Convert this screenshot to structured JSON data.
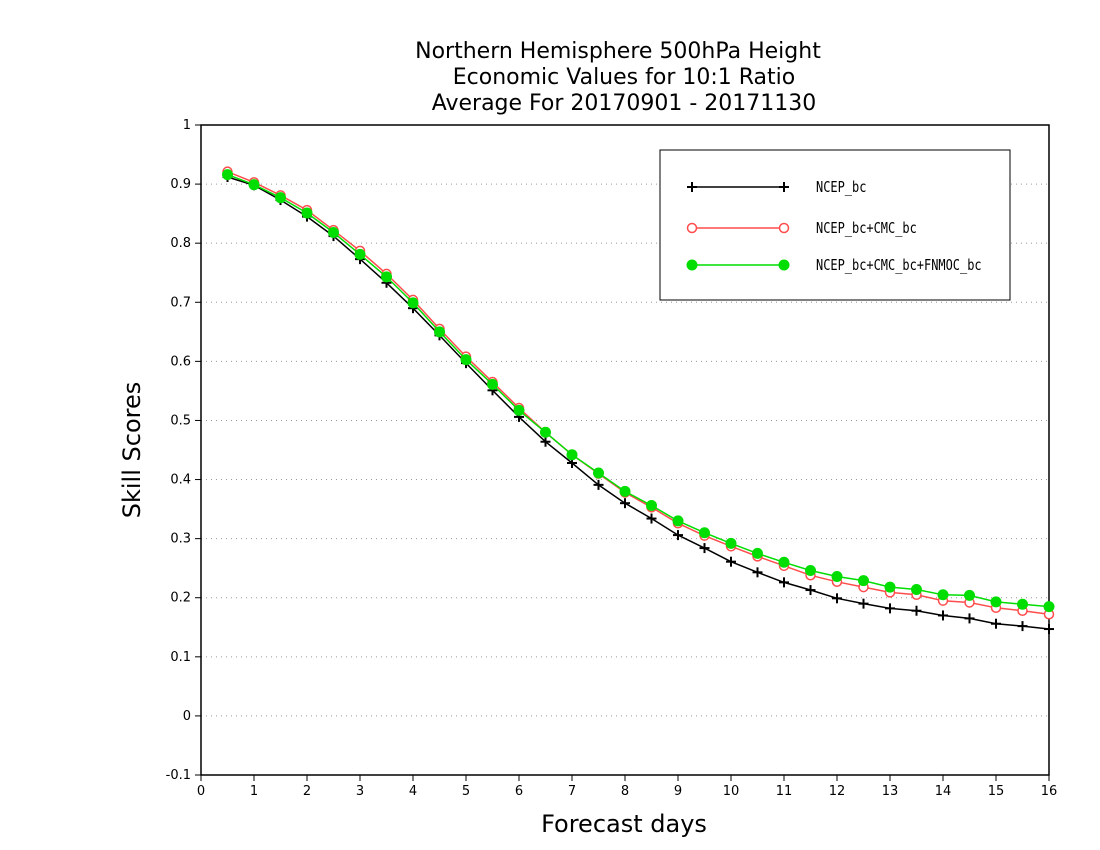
{
  "chart_data": {
    "type": "line",
    "title": [
      "Northern Hemisphere 500hPa Height",
      "Economic Values for 10:1 Ratio",
      "Average For 20170901 - 20171130"
    ],
    "xlabel": "Forecast days",
    "ylabel": "Skill Scores",
    "xlim": [
      0,
      16
    ],
    "ylim": [
      -0.1,
      1
    ],
    "xticks": [
      "0",
      "1",
      "2",
      "3",
      "4",
      "5",
      "6",
      "7",
      "8",
      "9",
      "10",
      "11",
      "12",
      "13",
      "14",
      "15",
      "16"
    ],
    "yticks": [
      "-0.1",
      "0",
      "0.1",
      "0.2",
      "0.3",
      "0.4",
      "0.5",
      "0.6",
      "0.7",
      "0.8",
      "0.9",
      "1"
    ],
    "grid": "horizontal-dotted",
    "legend_position": "top-right",
    "x": [
      0.5,
      1,
      1.5,
      2,
      2.5,
      3,
      3.5,
      4,
      4.5,
      5,
      5.5,
      6,
      6.5,
      7,
      7.5,
      8,
      8.5,
      9,
      9.5,
      10,
      10.5,
      11,
      11.5,
      12,
      12.5,
      13,
      13.5,
      14,
      14.5,
      15,
      15.5,
      16
    ],
    "series": [
      {
        "name": "NCEP_bc",
        "color": "#000000",
        "marker": "plus",
        "values": [
          0.912,
          0.898,
          0.873,
          0.845,
          0.812,
          0.773,
          0.733,
          0.69,
          0.644,
          0.597,
          0.551,
          0.506,
          0.464,
          0.428,
          0.391,
          0.36,
          0.334,
          0.306,
          0.284,
          0.261,
          0.243,
          0.226,
          0.213,
          0.199,
          0.19,
          0.182,
          0.178,
          0.17,
          0.165,
          0.156,
          0.152,
          0.147
        ]
      },
      {
        "name": "NCEP_bc+CMC_bc",
        "color": "#ff4d4d",
        "marker": "open-circle",
        "values": [
          0.921,
          0.903,
          0.881,
          0.856,
          0.822,
          0.787,
          0.748,
          0.704,
          0.655,
          0.608,
          0.565,
          0.521,
          0.48,
          0.442,
          0.41,
          0.378,
          0.353,
          0.326,
          0.305,
          0.287,
          0.27,
          0.254,
          0.238,
          0.227,
          0.218,
          0.209,
          0.205,
          0.195,
          0.192,
          0.183,
          0.178,
          0.172
        ]
      },
      {
        "name": "NCEP_bc+CMC_bc+FNMOC_bc",
        "color": "#00dd00",
        "marker": "filled-circle",
        "values": [
          0.916,
          0.899,
          0.877,
          0.851,
          0.818,
          0.781,
          0.743,
          0.699,
          0.65,
          0.603,
          0.561,
          0.517,
          0.48,
          0.442,
          0.411,
          0.38,
          0.356,
          0.33,
          0.31,
          0.292,
          0.275,
          0.26,
          0.246,
          0.236,
          0.229,
          0.218,
          0.214,
          0.205,
          0.204,
          0.193,
          0.189,
          0.185
        ]
      }
    ]
  }
}
